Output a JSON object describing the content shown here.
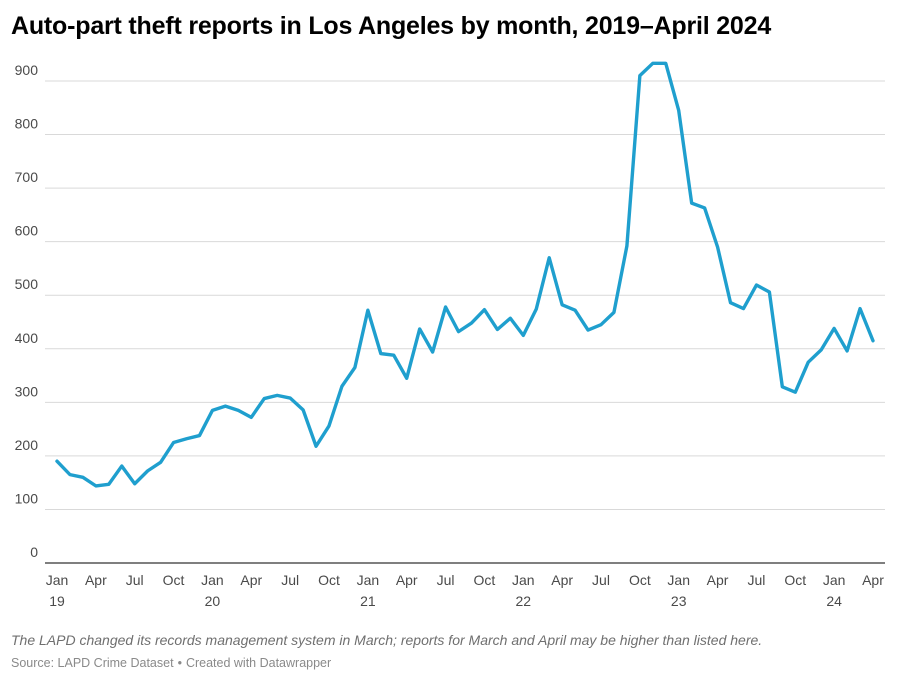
{
  "title": "Auto-part theft reports in Los Angeles by month, 2019–April 2024",
  "note": "The LAPD changed its records management system in March; reports for March and April may be higher than listed here.",
  "source": {
    "label": "Source: LAPD Crime Dataset",
    "separator": "•",
    "credit": "Created with Datawrapper"
  },
  "chart_data": {
    "type": "line",
    "title": "Auto-part theft reports in Los Angeles by month, 2019–April 2024",
    "xlabel": "",
    "ylabel": "",
    "ylim": [
      0,
      950
    ],
    "yticks": [
      0,
      100,
      200,
      300,
      400,
      500,
      600,
      700,
      800,
      900
    ],
    "grid": true,
    "legend": "none",
    "line_color": "#1f9fce",
    "x_start": "2019-01",
    "x_end": "2024-04",
    "x_ticks": [
      {
        "month": "2019-01",
        "label": "Jan",
        "year": "19"
      },
      {
        "month": "2019-04",
        "label": "Apr"
      },
      {
        "month": "2019-07",
        "label": "Jul"
      },
      {
        "month": "2019-10",
        "label": "Oct"
      },
      {
        "month": "2020-01",
        "label": "Jan",
        "year": "20"
      },
      {
        "month": "2020-04",
        "label": "Apr"
      },
      {
        "month": "2020-07",
        "label": "Jul"
      },
      {
        "month": "2020-10",
        "label": "Oct"
      },
      {
        "month": "2021-01",
        "label": "Jan",
        "year": "21"
      },
      {
        "month": "2021-04",
        "label": "Apr"
      },
      {
        "month": "2021-07",
        "label": "Jul"
      },
      {
        "month": "2021-10",
        "label": "Oct"
      },
      {
        "month": "2022-01",
        "label": "Jan",
        "year": "22"
      },
      {
        "month": "2022-04",
        "label": "Apr"
      },
      {
        "month": "2022-07",
        "label": "Jul"
      },
      {
        "month": "2022-10",
        "label": "Oct"
      },
      {
        "month": "2023-01",
        "label": "Jan",
        "year": "23"
      },
      {
        "month": "2023-04",
        "label": "Apr"
      },
      {
        "month": "2023-07",
        "label": "Jul"
      },
      {
        "month": "2023-10",
        "label": "Oct"
      },
      {
        "month": "2024-01",
        "label": "Jan",
        "year": "24"
      },
      {
        "month": "2024-04",
        "label": "Apr"
      }
    ],
    "series": [
      {
        "values": [
          190,
          165,
          160,
          144,
          147,
          181,
          148,
          172,
          188,
          225,
          232,
          238,
          285,
          293,
          285,
          272,
          307,
          313,
          308,
          286,
          218,
          256,
          330,
          365,
          472,
          391,
          388,
          345,
          437,
          394,
          478,
          432,
          448,
          473,
          436,
          457,
          425,
          474,
          570,
          482,
          472,
          435,
          445,
          468,
          592,
          910,
          933,
          933,
          845,
          672,
          663,
          590,
          486,
          475,
          519,
          506,
          329,
          319,
          375,
          398,
          438,
          396,
          475,
          415
        ]
      }
    ]
  }
}
